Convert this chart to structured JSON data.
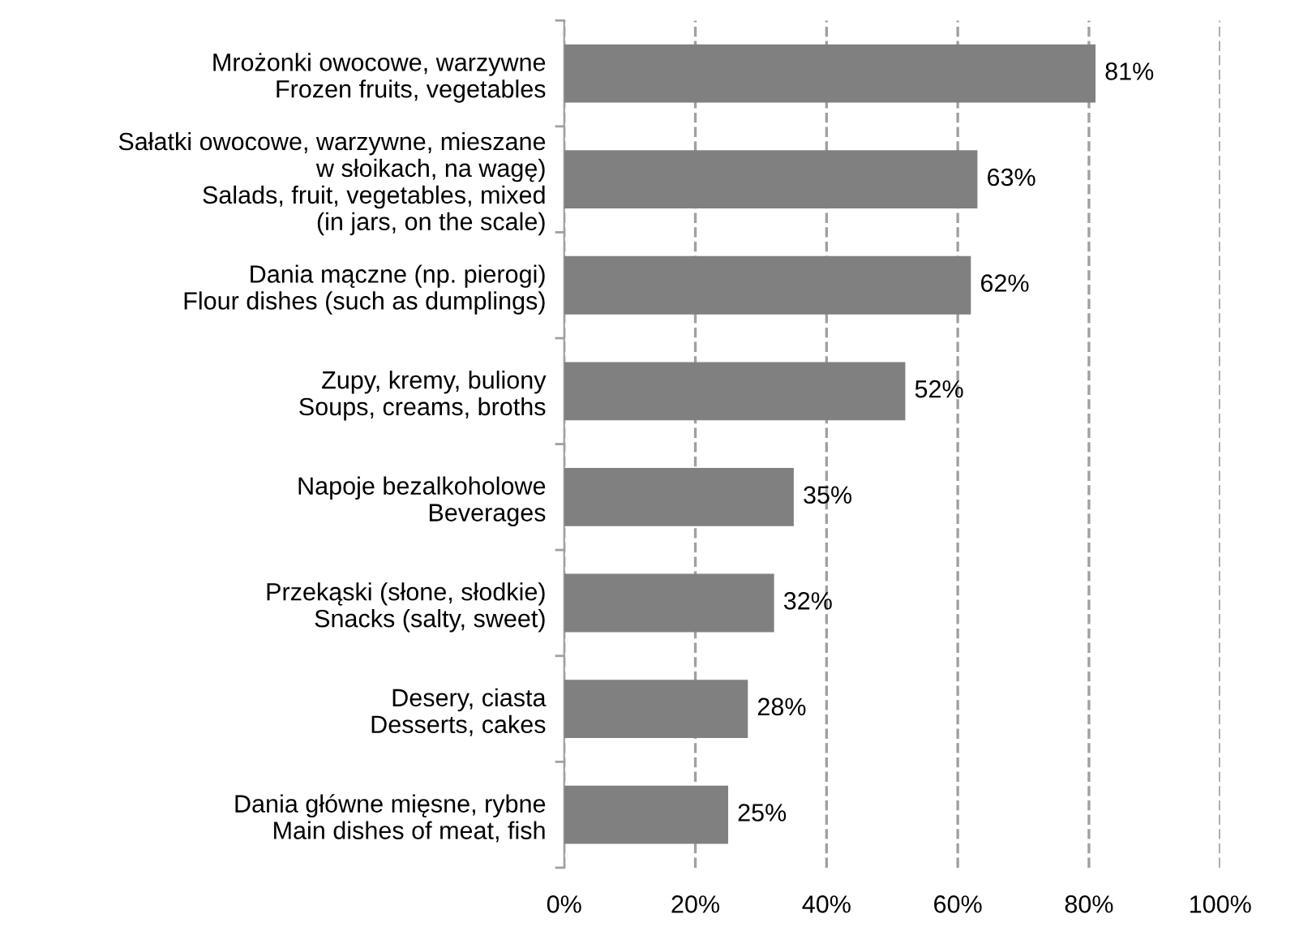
{
  "chart_data": {
    "type": "bar",
    "orientation": "horizontal",
    "categories": [
      "Mrożonki owocowe, warzywne\nFrozen fruits, vegetables",
      "Sałatki owocowe, warzywne, mieszane\nw słoikach, na wagę)\nSalads, fruit, vegetables, mixed\n(in jars, on the scale)",
      "Dania mączne (np. pierogi)\nFlour dishes (such as dumplings)",
      "Zupy, kremy, buliony\nSoups, creams, broths",
      "Napoje bezalkoholowe\nBeverages",
      "Przekąski (słone, słodkie)\nSnacks (salty, sweet)",
      "Desery, ciasta\nDesserts, cakes",
      "Dania główne mięsne, rybne\nMain dishes of meat, fish"
    ],
    "values": [
      81,
      63,
      62,
      52,
      35,
      32,
      28,
      25
    ],
    "value_labels": [
      "81%",
      "63%",
      "62%",
      "52%",
      "35%",
      "32%",
      "28%",
      "25%"
    ],
    "color": "#808080",
    "xlim": [
      0,
      100
    ],
    "xticks": [
      {
        "value": 0,
        "label": "0%"
      },
      {
        "value": 20,
        "label": "20%"
      },
      {
        "value": 40,
        "label": "40%"
      },
      {
        "value": 60,
        "label": "60%"
      },
      {
        "value": 80,
        "label": "80%"
      },
      {
        "value": 100,
        "label": "100%"
      }
    ],
    "grid": "x",
    "line_style": "dashed",
    "legend": false
  }
}
